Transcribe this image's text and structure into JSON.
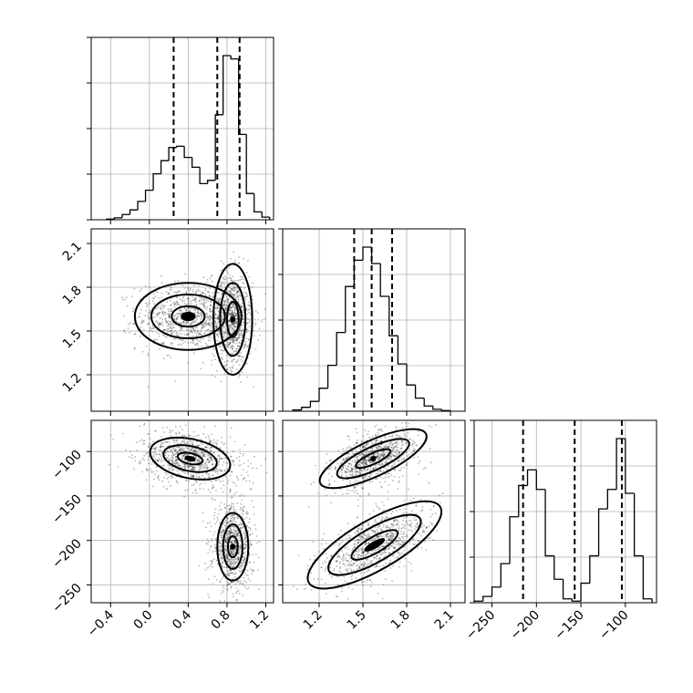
{
  "chart_data": {
    "type": "corner",
    "grid": true,
    "params": [
      {
        "ticks": [
          -0.4,
          0.0,
          0.4,
          0.8,
          1.2
        ],
        "range": [
          -0.6,
          1.28
        ]
      },
      {
        "ticks": [
          1.2,
          1.5,
          1.8,
          2.1
        ],
        "range": [
          0.95,
          2.2
        ]
      },
      {
        "ticks": [
          -250,
          -200,
          -150,
          -100
        ],
        "range": [
          -270,
          -65
        ]
      }
    ],
    "histograms": [
      {
        "param": 0,
        "bin_edges": [
          -0.44,
          -0.36,
          -0.28,
          -0.2,
          -0.12,
          -0.04,
          0.04,
          0.12,
          0.2,
          0.28,
          0.36,
          0.44,
          0.52,
          0.6,
          0.68,
          0.76,
          0.84,
          0.92,
          1.0,
          1.08,
          1.16,
          1.24
        ],
        "counts": [
          1,
          3,
          8,
          15,
          28,
          45,
          70,
          90,
          110,
          112,
          95,
          80,
          55,
          60,
          160,
          250,
          245,
          130,
          40,
          12,
          4
        ],
        "quantiles": [
          0.25,
          0.7,
          0.93
        ]
      },
      {
        "param": 1,
        "bin_edges": [
          1.02,
          1.08,
          1.14,
          1.2,
          1.26,
          1.32,
          1.38,
          1.44,
          1.5,
          1.56,
          1.62,
          1.68,
          1.74,
          1.8,
          1.86,
          1.92,
          1.98,
          2.04,
          2.1
        ],
        "counts": [
          2,
          6,
          15,
          35,
          70,
          120,
          190,
          230,
          250,
          225,
          175,
          115,
          72,
          40,
          20,
          8,
          3,
          1
        ],
        "quantiles": [
          1.44,
          1.56,
          1.7
        ]
      },
      {
        "param": 2,
        "bin_edges": [
          -270,
          -260,
          -250,
          -240,
          -230,
          -220,
          -210,
          -200,
          -190,
          -180,
          -170,
          -160,
          -150,
          -140,
          -130,
          -120,
          -110,
          -100,
          -90,
          -80,
          -70
        ],
        "counts": [
          2,
          8,
          20,
          50,
          110,
          150,
          170,
          145,
          60,
          30,
          5,
          2,
          25,
          60,
          120,
          145,
          210,
          140,
          60,
          5
        ],
        "quantiles": [
          -215,
          -157,
          -104
        ]
      }
    ],
    "scatter_panels": [
      {
        "x_param": 0,
        "y_param": 1,
        "clusters": [
          {
            "center": [
              0.4,
              1.6
            ],
            "spread": [
              0.23,
              0.1
            ],
            "rotation": 0,
            "levels": [
              [
                0.55,
                0.23
              ],
              [
                0.38,
                0.15
              ],
              [
                0.17,
                0.07
              ]
            ]
          },
          {
            "center": [
              0.86,
              1.58
            ],
            "spread": [
              0.09,
              0.14
            ],
            "rotation": 0,
            "levels": [
              [
                0.2,
                0.38
              ],
              [
                0.13,
                0.25
              ],
              [
                0.06,
                0.12
              ],
              [
                0.025,
                0.04
              ]
            ]
          }
        ]
      },
      {
        "x_param": 0,
        "y_param": 2,
        "clusters": [
          {
            "center": [
              0.42,
              -108
            ],
            "spread": [
              0.23,
              13
            ],
            "rotation": 12,
            "levels": [
              [
                0.42,
                22
              ],
              [
                0.28,
                14
              ],
              [
                0.13,
                6
              ]
            ]
          },
          {
            "center": [
              0.86,
              -207
            ],
            "spread": [
              0.09,
              20
            ],
            "rotation": 0,
            "levels": [
              [
                0.16,
                38
              ],
              [
                0.1,
                25
              ],
              [
                0.05,
                12
              ],
              [
                0.02,
                4
              ]
            ]
          }
        ]
      },
      {
        "x_param": 1,
        "y_param": 2,
        "clusters": [
          {
            "center": [
              1.57,
              -108
            ],
            "spread": [
              0.13,
              11
            ],
            "rotation": -25,
            "levels": [
              [
                0.4,
                20
              ],
              [
                0.27,
                13
              ],
              [
                0.13,
                6
              ],
              [
                0.04,
                2
              ]
            ]
          },
          {
            "center": [
              1.58,
              -205
            ],
            "spread": [
              0.17,
              14
            ],
            "rotation": -30,
            "levels": [
              [
                0.52,
                28
              ],
              [
                0.36,
                19
              ],
              [
                0.18,
                9
              ]
            ]
          }
        ]
      }
    ]
  }
}
